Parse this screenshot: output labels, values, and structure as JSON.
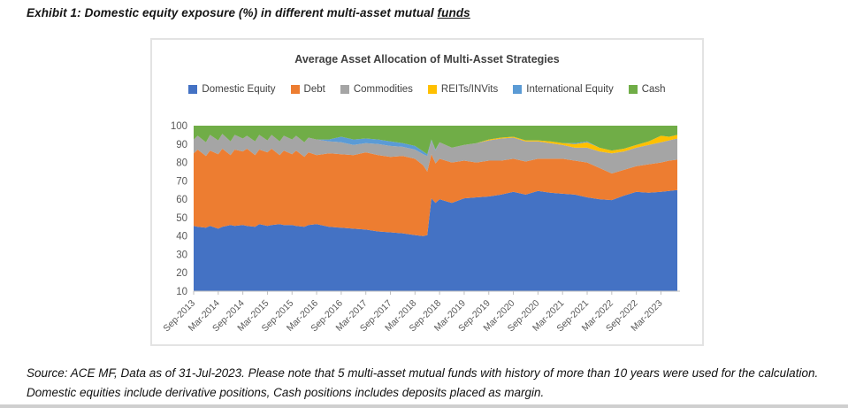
{
  "page": {
    "heading_prefix": "Exhibit 1: Domestic equity exposure (%) in different multi-asset mutual ",
    "heading_underlined": "funds",
    "source_note": "Source: ACE MF, Data as of 31-Jul-2023. Please note that 5 multi-asset mutual funds with history of more than 10 years were used for the calculation. Domestic equities include derivative positions, Cash positions includes deposits placed as margin."
  },
  "chart_data": {
    "type": "area",
    "stacked": true,
    "title": "Average Asset Allocation of Multi-Asset Strategies",
    "unit": "percent_allocation",
    "legend_position": "top",
    "grid": false,
    "y_axis": {
      "min": 10,
      "max": 100,
      "ticks": [
        10,
        20,
        30,
        40,
        50,
        60,
        70,
        80,
        90,
        100
      ]
    },
    "x_axis": {
      "start": "Sep-2013",
      "end": "Jul-2023",
      "months_total": 118,
      "tick_every_months": 6,
      "tick_labels": [
        "Sep-2013",
        "Mar-2014",
        "Sep-2014",
        "Mar-2015",
        "Sep-2015",
        "Mar-2016",
        "Sep-2016",
        "Mar-2017",
        "Sep-2017",
        "Mar-2018",
        "Sep-2018",
        "Mar-2019",
        "Sep-2019",
        "Mar-2020",
        "Sep-2020",
        "Mar-2021",
        "Sep-2021",
        "Mar-2022",
        "Sep-2022",
        "Mar-2023"
      ]
    },
    "series_names": [
      "Domestic Equity",
      "Debt",
      "Commodities",
      "REITs/INVits",
      "International Equity",
      "Cash"
    ],
    "series_colors": [
      "#4472C4",
      "#ED7D31",
      "#A5A5A5",
      "#FFC000",
      "#5B9BD5",
      "#70AD47"
    ],
    "points_format": [
      "month_index",
      "date",
      "Domestic Equity",
      "Debt",
      "Commodities",
      "REITs/INVits",
      "International Equity",
      "Cash"
    ],
    "points": [
      [
        0,
        "Sep-2013",
        45.5,
        39.5,
        7.5,
        0,
        0,
        7.5
      ],
      [
        1,
        "Oct-2013",
        45.0,
        42.0,
        7.5,
        0,
        0,
        5.5
      ],
      [
        3,
        "Dec-2013",
        44.5,
        39.0,
        7.5,
        0,
        0,
        9.0
      ],
      [
        4,
        "Jan-2014",
        45.5,
        41.0,
        8.5,
        0,
        0,
        5.0
      ],
      [
        6,
        "Mar-2014",
        44.0,
        40.5,
        7.5,
        0,
        0,
        8.0
      ],
      [
        7,
        "Apr-2014",
        45.0,
        42.5,
        8.0,
        0,
        0,
        4.5
      ],
      [
        9,
        "Jun-2014",
        46.0,
        38.0,
        7.5,
        0,
        0,
        8.5
      ],
      [
        10,
        "Jul-2014",
        45.5,
        41.5,
        8.0,
        0,
        0,
        5.0
      ],
      [
        12,
        "Sep-2014",
        46.0,
        40.0,
        7.0,
        0,
        0,
        7.0
      ],
      [
        13,
        "Oct-2014",
        45.5,
        42.0,
        7.0,
        0,
        0,
        5.5
      ],
      [
        15,
        "Dec-2014",
        45.0,
        39.0,
        7.5,
        0,
        0,
        8.5
      ],
      [
        16,
        "Jan-2015",
        46.5,
        40.5,
        8.0,
        0,
        0,
        5.0
      ],
      [
        18,
        "Mar-2015",
        45.5,
        40.0,
        6.5,
        0,
        0,
        8.0
      ],
      [
        19,
        "Apr-2015",
        46.0,
        41.5,
        7.5,
        0,
        0,
        5.0
      ],
      [
        21,
        "Jun-2015",
        46.5,
        37.5,
        7.5,
        0,
        0,
        8.5
      ],
      [
        22,
        "Jul-2015",
        46.0,
        40.5,
        8.0,
        0,
        0,
        5.5
      ],
      [
        24,
        "Sep-2015",
        46.0,
        38.5,
        8.0,
        0,
        0,
        7.5
      ],
      [
        25,
        "Oct-2015",
        45.5,
        41.0,
        8.0,
        0,
        0,
        5.5
      ],
      [
        27,
        "Dec-2015",
        45.0,
        38.0,
        8.0,
        0,
        0,
        9.0
      ],
      [
        28,
        "Jan-2016",
        46.0,
        39.5,
        8.0,
        0,
        0,
        6.5
      ],
      [
        30,
        "Mar-2016",
        46.5,
        37.5,
        8.5,
        0,
        0,
        7.5
      ],
      [
        33,
        "Jun-2016",
        45.0,
        40.0,
        6.5,
        0,
        1.0,
        7.5
      ],
      [
        36,
        "Sep-2016",
        44.5,
        40.0,
        6.5,
        0,
        3.0,
        6.0
      ],
      [
        39,
        "Dec-2016",
        44.0,
        40.0,
        5.5,
        0,
        3.0,
        7.5
      ],
      [
        42,
        "Mar-2017",
        43.5,
        42.0,
        5.0,
        0,
        2.5,
        7.0
      ],
      [
        45,
        "Jun-2017",
        42.5,
        41.5,
        6.0,
        0,
        2.5,
        7.5
      ],
      [
        48,
        "Sep-2017",
        42.0,
        41.0,
        6.0,
        0,
        2.5,
        8.5
      ],
      [
        51,
        "Dec-2017",
        41.5,
        42.0,
        5.0,
        0,
        2.0,
        9.5
      ],
      [
        54,
        "Mar-2018",
        40.5,
        41.5,
        5.0,
        0,
        2.0,
        11.0
      ],
      [
        56,
        "May-2018",
        40.0,
        38.5,
        6.0,
        0,
        1.5,
        14.0
      ],
      [
        57,
        "Jun-2018",
        40.5,
        34.5,
        8.5,
        0,
        1.0,
        15.5
      ],
      [
        58,
        "Jul-2018",
        60.5,
        24.0,
        7.5,
        0,
        0.5,
        7.5
      ],
      [
        59,
        "Aug-2018",
        58.0,
        21.5,
        7.0,
        0,
        0.5,
        13.0
      ],
      [
        60,
        "Sep-2018",
        60.0,
        22.0,
        9.0,
        0,
        0,
        9.0
      ],
      [
        63,
        "Dec-2018",
        58.0,
        22.0,
        8.0,
        0,
        0,
        12.0
      ],
      [
        66,
        "Mar-2019",
        60.5,
        20.5,
        8.5,
        0,
        0,
        10.5
      ],
      [
        69,
        "Jun-2019",
        61.0,
        19.0,
        10.5,
        0,
        0,
        9.5
      ],
      [
        72,
        "Sep-2019",
        61.5,
        19.5,
        11.0,
        0.5,
        0,
        7.5
      ],
      [
        75,
        "Dec-2019",
        62.5,
        18.5,
        12.0,
        0.5,
        0,
        6.5
      ],
      [
        78,
        "Mar-2020",
        64.0,
        18.0,
        11.5,
        0.5,
        0,
        6.0
      ],
      [
        81,
        "Jun-2020",
        62.5,
        18.0,
        11.0,
        0.5,
        0,
        8.0
      ],
      [
        84,
        "Sep-2020",
        64.5,
        17.5,
        9.5,
        0.5,
        0,
        8.0
      ],
      [
        87,
        "Dec-2020",
        63.5,
        18.5,
        8.5,
        1.0,
        0,
        8.5
      ],
      [
        90,
        "Mar-2021",
        63.0,
        19.0,
        7.5,
        1.0,
        0,
        9.5
      ],
      [
        93,
        "Jun-2021",
        62.5,
        18.5,
        7.0,
        2.0,
        0.5,
        9.5
      ],
      [
        96,
        "Sep-2021",
        61.0,
        19.0,
        8.0,
        3.0,
        0.5,
        8.5
      ],
      [
        99,
        "Dec-2021",
        60.0,
        17.0,
        9.0,
        2.0,
        0,
        12.0
      ],
      [
        102,
        "Mar-2022",
        59.5,
        14.5,
        11.0,
        1.5,
        0,
        13.5
      ],
      [
        105,
        "Jun-2022",
        62.0,
        14.0,
        10.0,
        1.5,
        0,
        12.5
      ],
      [
        108,
        "Sep-2022",
        64.0,
        14.0,
        10.0,
        1.5,
        0,
        10.5
      ],
      [
        111,
        "Dec-2022",
        63.5,
        15.5,
        10.5,
        2.0,
        0,
        8.5
      ],
      [
        114,
        "Mar-2023",
        64.0,
        16.0,
        11.0,
        3.5,
        0,
        5.5
      ],
      [
        116,
        "May-2023",
        64.5,
        16.5,
        11.0,
        2.0,
        0,
        6.0
      ],
      [
        118,
        "Jul-2023",
        65.0,
        16.5,
        11.5,
        2.0,
        0,
        5.0
      ]
    ],
    "axis_color": "#bfbfbf",
    "tick_label_color": "#595959"
  }
}
